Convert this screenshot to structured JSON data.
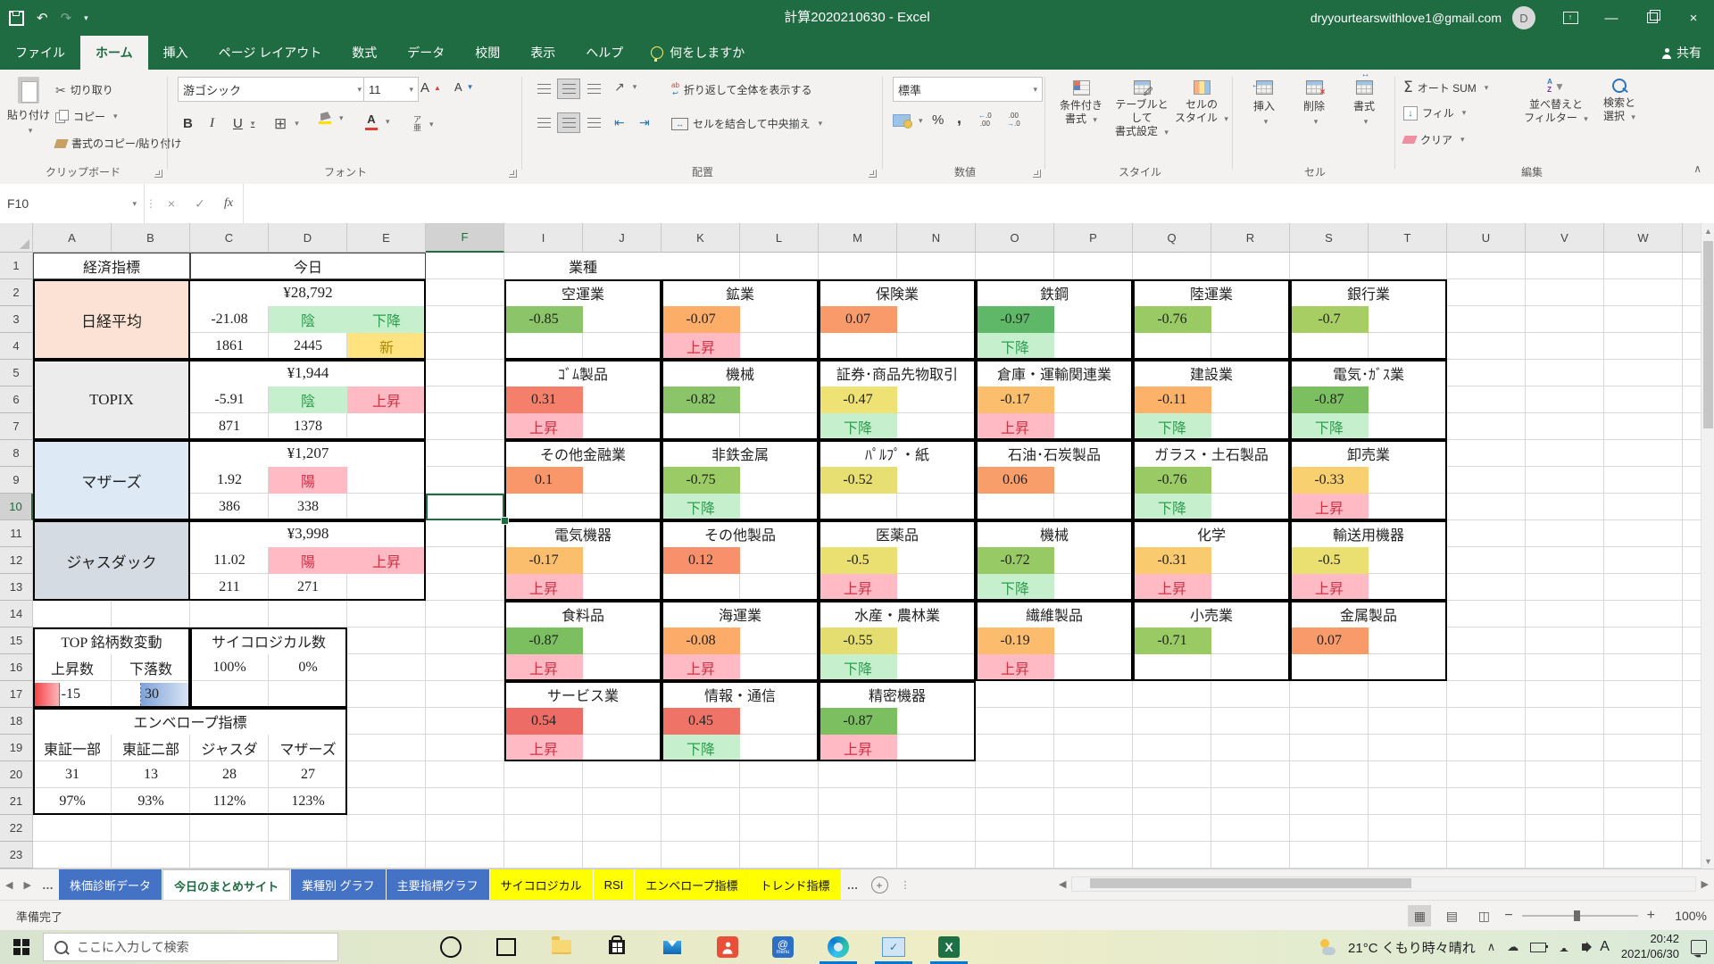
{
  "title_bar": {
    "title": "計算2020210630  -  Excel",
    "account": "dryyourtearswithlove1@gmail.com",
    "avatar": "D"
  },
  "menu": {
    "tabs": [
      "ファイル",
      "ホーム",
      "挿入",
      "ページ レイアウト",
      "数式",
      "データ",
      "校閲",
      "表示",
      "ヘルプ"
    ],
    "active_tab": "ホーム",
    "search_hint": "何をしますか",
    "share_label": "共有"
  },
  "ribbon": {
    "paste": "貼り付け",
    "cut": "切り取り",
    "copy": "コピー",
    "format_painter": "書式のコピー/貼り付け",
    "clipboard_group": "クリップボード",
    "font_name": "游ゴシック",
    "font_size": "11",
    "font_group": "フォント",
    "wrap_text": "折り返して全体を表示する",
    "merge_center": "セルを結合して中央揃え",
    "align_group": "配置",
    "number_format": "標準",
    "number_group": "数値",
    "conditional_1": "条件付き",
    "conditional_2": "書式",
    "table_1": "テーブルとして",
    "table_2": "書式設定",
    "cellstyle_1": "セルの",
    "cellstyle_2": "スタイル",
    "styles_group": "スタイル",
    "insert": "挿入",
    "delete": "削除",
    "format": "書式",
    "cells_group": "セル",
    "autosum": "オート SUM",
    "fill": "フィル",
    "clear": "クリア",
    "sort_1": "並べ替えと",
    "sort_2": "フィルター",
    "find_1": "検索と",
    "find_2": "選択",
    "edit_group": "編集"
  },
  "formula_bar": {
    "name_box": "F10",
    "formula": ""
  },
  "grid": {
    "columns": [
      "A",
      "B",
      "C",
      "D",
      "E",
      "F",
      "I",
      "J",
      "K",
      "L",
      "M",
      "N",
      "O",
      "P",
      "Q",
      "R",
      "S",
      "T",
      "U",
      "V",
      "W",
      "X"
    ],
    "row_count": 23,
    "selected_cell": {
      "col": "F",
      "row": 10
    },
    "styles": {
      "pink": {
        "bg": "#FFBAC4",
        "fg": "#CD3247"
      },
      "green": {
        "bg": "#C6EFCE",
        "fg": "#2E9E50"
      },
      "yellow": {
        "bg": "#FFE380",
        "fg": "#AD8A00"
      }
    },
    "indicators": {
      "header_label": "経済指標",
      "today_label": "今日",
      "items": [
        {
          "name": "日経平均",
          "bg": "#FBE2D4",
          "price": "¥28,792",
          "change": "-21.08",
          "candle": "陰",
          "candle_type": "green",
          "trend": "下降",
          "trend_type": "green",
          "adv": "1861",
          "dec": "2445",
          "extra": "新"
        },
        {
          "name": "TOPIX",
          "bg": "#ECECEC",
          "price": "¥1,944",
          "change": "-5.91",
          "candle": "陰",
          "candle_type": "green",
          "trend": "上昇",
          "trend_type": "pink",
          "adv": "871",
          "dec": "1378",
          "extra": ""
        },
        {
          "name": "マザーズ",
          "bg": "#DDEAF6",
          "price": "¥1,207",
          "change": "1.92",
          "candle": "陽",
          "candle_type": "pink",
          "trend": "",
          "trend_type": "",
          "adv": "386",
          "dec": "338",
          "extra": ""
        },
        {
          "name": "ジャスダック",
          "bg": "#D5DBE3",
          "price": "¥3,998",
          "change": "11.02",
          "candle": "陽",
          "candle_type": "pink",
          "trend": "上昇",
          "trend_type": "pink",
          "adv": "211",
          "dec": "271",
          "extra": ""
        }
      ]
    },
    "counts": {
      "top_label": "TOP 銘柄数変動",
      "psy_label": "サイコロジカル数",
      "up_label": "上昇数",
      "down_label": "下落数",
      "up_value": "-15",
      "down_value": "30",
      "psy_values": [
        "100%",
        "0%"
      ]
    },
    "envelope": {
      "label": "エンベロープ指標",
      "markets": [
        "東証一部",
        "東証二部",
        "ジャスダ",
        "マザーズ"
      ],
      "counts": [
        "31",
        "13",
        "28",
        "27"
      ],
      "percents": [
        "97%",
        "93%",
        "112%",
        "123%"
      ]
    },
    "sectors": {
      "label": "業種",
      "blocks": [
        {
          "col": "I",
          "row": 2,
          "name": "空運業",
          "value": "-0.85",
          "value_bg": "#8CC46A",
          "trend": "",
          "trend_type": ""
        },
        {
          "col": "K",
          "row": 2,
          "name": "鉱業",
          "value": "-0.07",
          "value_bg": "#FCAD68",
          "trend": "上昇",
          "trend_type": "pink"
        },
        {
          "col": "M",
          "row": 2,
          "name": "保険業",
          "value": "0.07",
          "value_bg": "#F89A6A",
          "trend": "",
          "trend_type": ""
        },
        {
          "col": "O",
          "row": 2,
          "name": "鉄鋼",
          "value": "-0.97",
          "value_bg": "#5FB867",
          "trend": "下降",
          "trend_type": "green"
        },
        {
          "col": "Q",
          "row": 2,
          "name": "陸運業",
          "value": "-0.76",
          "value_bg": "#9ACA64",
          "trend": "",
          "trend_type": ""
        },
        {
          "col": "S",
          "row": 2,
          "name": "銀行業",
          "value": "-0.7",
          "value_bg": "#A6CE63",
          "trend": "",
          "trend_type": ""
        },
        {
          "col": "I",
          "row": 5,
          "name": "ｺﾞﾑ製品",
          "value": "0.31",
          "value_bg": "#F4806C",
          "trend": "上昇",
          "trend_type": "pink"
        },
        {
          "col": "K",
          "row": 5,
          "name": "機械",
          "value": "-0.82",
          "value_bg": "#8BC469",
          "trend": "",
          "trend_type": ""
        },
        {
          "col": "M",
          "row": 5,
          "name": "証券･商品先物取引",
          "value": "-0.47",
          "value_bg": "#EDE273",
          "trend": "下降",
          "trend_type": "green"
        },
        {
          "col": "O",
          "row": 5,
          "name": "倉庫・運輸関連業",
          "value": "-0.17",
          "value_bg": "#FBBE6D",
          "trend": "上昇",
          "trend_type": "pink"
        },
        {
          "col": "Q",
          "row": 5,
          "name": "建設業",
          "value": "-0.11",
          "value_bg": "#FCB269",
          "trend": "下降",
          "trend_type": "green"
        },
        {
          "col": "S",
          "row": 5,
          "name": "電気･ｶﾞｽ業",
          "value": "-0.87",
          "value_bg": "#7BBF60",
          "trend": "下降",
          "trend_type": "green"
        },
        {
          "col": "I",
          "row": 8,
          "name": "その他金融業",
          "value": "0.1",
          "value_bg": "#F9976B",
          "trend": "",
          "trend_type": ""
        },
        {
          "col": "K",
          "row": 8,
          "name": "非鉄金属",
          "value": "-0.75",
          "value_bg": "#9BCB65",
          "trend": "下降",
          "trend_type": "green"
        },
        {
          "col": "M",
          "row": 8,
          "name": "ﾊﾟﾙﾌﾟ・紙",
          "value": "-0.52",
          "value_bg": "#E7DF71",
          "trend": "",
          "trend_type": ""
        },
        {
          "col": "O",
          "row": 8,
          "name": "石油･石炭製品",
          "value": "0.06",
          "value_bg": "#F89E6A",
          "trend": "",
          "trend_type": ""
        },
        {
          "col": "Q",
          "row": 8,
          "name": "ガラス・土石製品",
          "value": "-0.76",
          "value_bg": "#9ACA64",
          "trend": "下降",
          "trend_type": "green"
        },
        {
          "col": "S",
          "row": 8,
          "name": "卸売業",
          "value": "-0.33",
          "value_bg": "#F8D06F",
          "trend": "上昇",
          "trend_type": "pink"
        },
        {
          "col": "I",
          "row": 11,
          "name": "電気機器",
          "value": "-0.17",
          "value_bg": "#FBBE6D",
          "trend": "上昇",
          "trend_type": "pink"
        },
        {
          "col": "K",
          "row": 11,
          "name": "その他製品",
          "value": "0.12",
          "value_bg": "#F7906B",
          "trend": "",
          "trend_type": ""
        },
        {
          "col": "M",
          "row": 11,
          "name": "医薬品",
          "value": "-0.5",
          "value_bg": "#EAE072",
          "trend": "上昇",
          "trend_type": "pink"
        },
        {
          "col": "O",
          "row": 11,
          "name": "機械",
          "value": "-0.72",
          "value_bg": "#97C964",
          "trend": "下降",
          "trend_type": "green"
        },
        {
          "col": "Q",
          "row": 11,
          "name": "化学",
          "value": "-0.31",
          "value_bg": "#F9CA6E",
          "trend": "上昇",
          "trend_type": "pink"
        },
        {
          "col": "S",
          "row": 11,
          "name": "輸送用機器",
          "value": "-0.5",
          "value_bg": "#EAE072",
          "trend": "上昇",
          "trend_type": "pink"
        },
        {
          "col": "I",
          "row": 14,
          "name": "食料品",
          "value": "-0.87",
          "value_bg": "#7BBF60",
          "trend": "上昇",
          "trend_type": "pink"
        },
        {
          "col": "K",
          "row": 14,
          "name": "海運業",
          "value": "-0.08",
          "value_bg": "#FCAC68",
          "trend": "上昇",
          "trend_type": "pink"
        },
        {
          "col": "M",
          "row": 14,
          "name": "水産・農林業",
          "value": "-0.55",
          "value_bg": "#E4DE71",
          "trend": "下降",
          "trend_type": "green"
        },
        {
          "col": "O",
          "row": 14,
          "name": "繊維製品",
          "value": "-0.19",
          "value_bg": "#FBBC6D",
          "trend": "上昇",
          "trend_type": "pink"
        },
        {
          "col": "Q",
          "row": 14,
          "name": "小売業",
          "value": "-0.71",
          "value_bg": "#99CA64",
          "trend": "",
          "trend_type": ""
        },
        {
          "col": "S",
          "row": 14,
          "name": "金属製品",
          "value": "0.07",
          "value_bg": "#F89A6A",
          "trend": "",
          "trend_type": ""
        },
        {
          "col": "I",
          "row": 17,
          "name": "サービス業",
          "value": "0.54",
          "value_bg": "#EE6C66",
          "trend": "上昇",
          "trend_type": "pink"
        },
        {
          "col": "K",
          "row": 17,
          "name": "情報・通信",
          "value": "0.45",
          "value_bg": "#F07367",
          "trend": "下降",
          "trend_type": "green"
        },
        {
          "col": "M",
          "row": 17,
          "name": "精密機器",
          "value": "-0.87",
          "value_bg": "#7BBF60",
          "trend": "上昇",
          "trend_type": "pink"
        }
      ]
    }
  },
  "tab_strip": {
    "left_more": "…",
    "right_more": "…",
    "tabs": [
      {
        "label": "株価診断データ",
        "style": "blue"
      },
      {
        "label": "今日のまとめサイト",
        "style": "active"
      },
      {
        "label": "業種別 グラフ",
        "style": "blue"
      },
      {
        "label": "主要指標グラフ",
        "style": "blue"
      },
      {
        "label": "サイコロジカル",
        "style": "yellow"
      },
      {
        "label": "RSI",
        "style": "yellow"
      },
      {
        "label": "エンベロープ指標",
        "style": "yellow"
      },
      {
        "label": "トレンド指標",
        "style": "yellow"
      }
    ]
  },
  "status_bar": {
    "ready": "準備完了",
    "zoom": "100%"
  },
  "taskbar": {
    "search_placeholder": "ここに入力して検索",
    "weather": "21°C くもり時々晴れ",
    "ime": "A",
    "time": "20:42",
    "date": "2021/06/30"
  }
}
